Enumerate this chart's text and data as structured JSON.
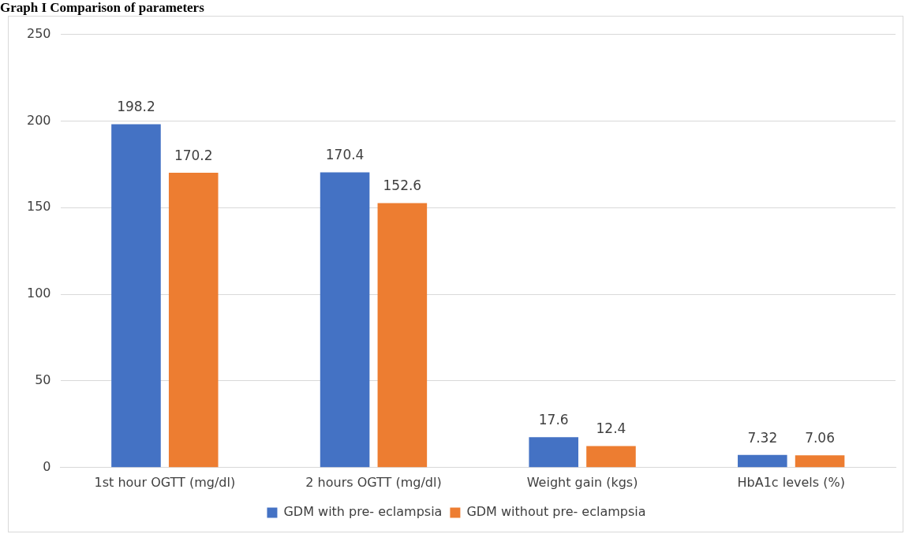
{
  "chart_data": {
    "type": "bar",
    "title": "Graph I Comparison of parameters",
    "categories": [
      "1st hour OGTT (mg/dl)",
      "2 hours OGTT (mg/dl)",
      "Weight gain (kgs)",
      "HbA1c levels (%)"
    ],
    "series": [
      {
        "name": "GDM with pre- eclampsia",
        "color": "#4472c4",
        "values": [
          198.2,
          170.4,
          17.6,
          7.32
        ]
      },
      {
        "name": "GDM without pre- eclampsia",
        "color": "#ed7d31",
        "values": [
          170.2,
          152.6,
          12.4,
          7.06
        ]
      }
    ],
    "ylim": [
      0,
      250
    ],
    "yticks": [
      0,
      50,
      100,
      150,
      200,
      250
    ],
    "grid": "y",
    "legend": "bottom",
    "data_labels": true
  }
}
